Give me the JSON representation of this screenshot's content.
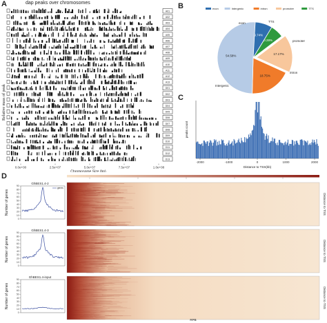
{
  "panels": {
    "A": "A",
    "B": "B",
    "C": "C",
    "D": "D"
  },
  "chart_data": [
    {
      "type": "other",
      "panel": "A",
      "title": "dap peaks over chromosomes",
      "xlabel": "Chromosome Size (bp)",
      "ylabel": "Relative mass of peak",
      "x_ticks": [
        "0.0e+00",
        "2.5e+07",
        "5.0e+07",
        "7.5e+07",
        "1.0e+08"
      ],
      "chromosomes": [
        "A01",
        "A02",
        "A03",
        "A04",
        "A05",
        "A06",
        "A07",
        "A08",
        "A09",
        "A10",
        "A11",
        "A12",
        "A13",
        "D01",
        "D02",
        "D03",
        "D04",
        "D05",
        "D06",
        "D07",
        "D08",
        "D09",
        "D10",
        "D11",
        "D12",
        "D13"
      ]
    },
    {
      "type": "pie",
      "panel": "B",
      "legend": [
        "exon",
        "Intergenic",
        "intron",
        "promoter",
        "TTS"
      ],
      "colors": [
        "#2f6fb0",
        "#b6cbe6",
        "#f07b2a",
        "#f8c79c",
        "#2e9a3e"
      ],
      "values": [
        9.74,
        54.58,
        18.75,
        17.17,
        0.28
      ],
      "value_labels": [
        "9.74%",
        "54.58%",
        "18.75%",
        "17.17%",
        "0.28%"
      ],
      "slice_labels": [
        "exon",
        "Intergenic",
        "intron",
        "promoter",
        "TTS"
      ]
    },
    {
      "type": "bar",
      "panel": "C",
      "xlabel": "Distance to TSS(kb)",
      "ylabel": "peaks count",
      "x_ticks": [
        "-2000",
        "-1000",
        "0",
        "1000",
        "2000"
      ],
      "xlim": [
        -2000,
        2000
      ],
      "bar_color": "#3b6db3"
    },
    {
      "type": "line",
      "panel": "D",
      "profiles": [
        {
          "title": "GhBES1.4-2",
          "legend": "genes",
          "ylabel": "Number of genes",
          "y_ticks": [
            "0",
            "10",
            "20",
            "30",
            "40",
            "50",
            "60",
            "70",
            "80",
            "90"
          ]
        },
        {
          "title": "GhBES1.4-3",
          "ylabel": "Number of genes",
          "y_ticks": [
            "0",
            "10",
            "20",
            "30",
            "40",
            "50",
            "60",
            "70",
            "80",
            "90"
          ]
        },
        {
          "title": "GhBES1.4-input",
          "ylabel": "Number of genes",
          "y_ticks": [
            "0",
            "10",
            "20",
            "30",
            "40",
            "50",
            "60",
            "70",
            "80",
            "90"
          ]
        }
      ],
      "heatmap_side_label": "Distance to TSS",
      "heatmap_xlabel": "RPB",
      "heatmap_colors": [
        "#f7e2c8",
        "#8b1a12"
      ]
    }
  ]
}
